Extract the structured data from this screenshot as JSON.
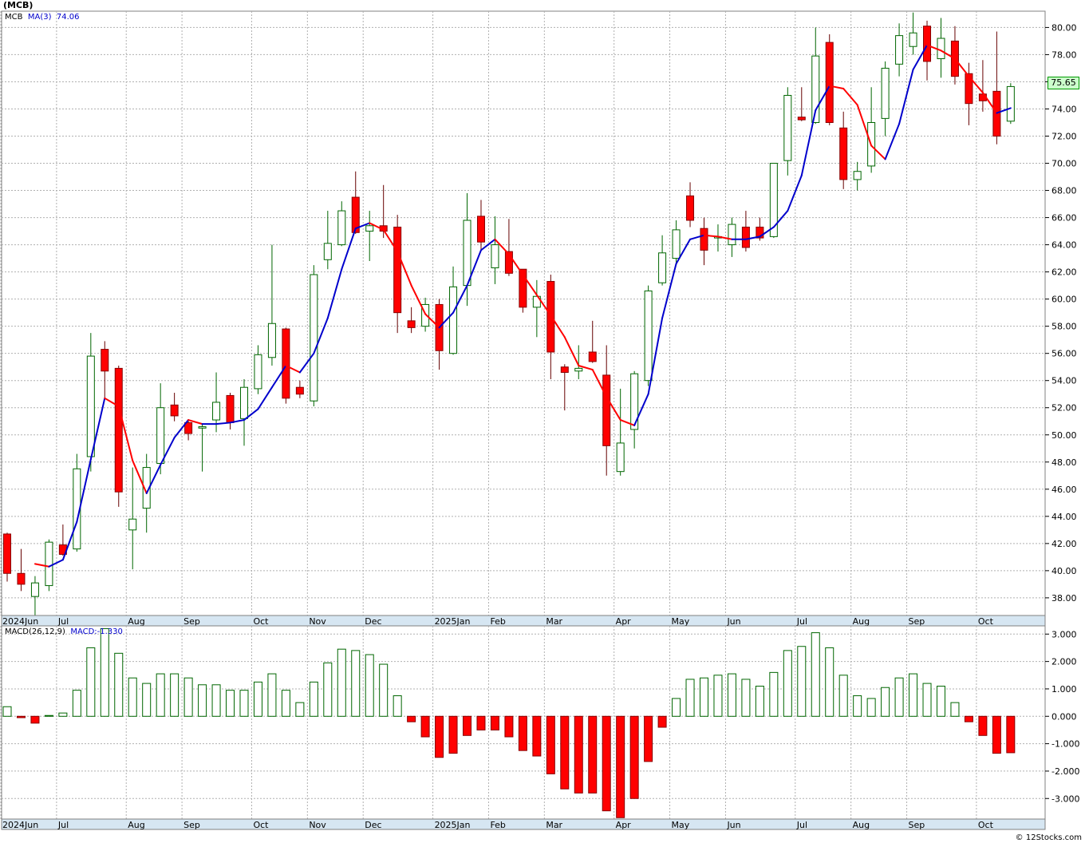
{
  "header": {
    "title": "(MCB)",
    "price_legend_symbol": "MCB",
    "ma_label": "MA(3)",
    "ma_value": "74.06",
    "macd_label": "MACD(26,12,9)",
    "macd_value_label": "MACD:-1.330",
    "last_price": "75.65",
    "credit": "© 12Stocks.com"
  },
  "colors": {
    "up_outline": "#006600",
    "down_fill": "#ff0000",
    "ma_up": "#0000cc",
    "ma_down": "#ff0000",
    "grid": "#b0b0b0",
    "axis_band": "#d6e6f2"
  },
  "chart_data": [
    {
      "type": "candlestick",
      "title": "(MCB)",
      "interval": "weekly",
      "ylim": [
        36.7,
        81.2
      ],
      "y_ticks": [
        "38.00",
        "40.00",
        "42.00",
        "44.00",
        "46.00",
        "48.00",
        "50.00",
        "52.00",
        "54.00",
        "56.00",
        "58.00",
        "60.00",
        "62.00",
        "64.00",
        "66.00",
        "68.00",
        "70.00",
        "72.00",
        "74.00",
        "76.00",
        "78.00",
        "80.00"
      ],
      "x_ticks": [
        {
          "label": "2024Jun",
          "i": 0
        },
        {
          "label": "Jul",
          "i": 4
        },
        {
          "label": "Aug",
          "i": 9
        },
        {
          "label": "Sep",
          "i": 13
        },
        {
          "label": "Oct",
          "i": 18
        },
        {
          "label": "Nov",
          "i": 22
        },
        {
          "label": "Dec",
          "i": 26
        },
        {
          "label": "2025Jan",
          "i": 31
        },
        {
          "label": "Feb",
          "i": 35
        },
        {
          "label": "Mar",
          "i": 39
        },
        {
          "label": "Apr",
          "i": 44
        },
        {
          "label": "May",
          "i": 48
        },
        {
          "label": "Jun",
          "i": 52
        },
        {
          "label": "Jul",
          "i": 57
        },
        {
          "label": "Aug",
          "i": 61
        },
        {
          "label": "Sep",
          "i": 65
        },
        {
          "label": "Oct",
          "i": 70
        }
      ],
      "candles": [
        {
          "o": 42.7,
          "h": 42.8,
          "l": 39.2,
          "c": 39.8
        },
        {
          "o": 39.8,
          "h": 41.6,
          "l": 38.5,
          "c": 39.0
        },
        {
          "o": 38.1,
          "h": 39.6,
          "l": 36.5,
          "c": 39.1
        },
        {
          "o": 38.9,
          "h": 42.3,
          "l": 38.5,
          "c": 42.1
        },
        {
          "o": 41.9,
          "h": 43.4,
          "l": 41.1,
          "c": 41.2
        },
        {
          "o": 41.6,
          "h": 48.6,
          "l": 41.4,
          "c": 47.5
        },
        {
          "o": 48.4,
          "h": 57.5,
          "l": 47.3,
          "c": 55.8
        },
        {
          "o": 56.3,
          "h": 56.9,
          "l": 52.7,
          "c": 54.7
        },
        {
          "o": 54.9,
          "h": 55.1,
          "l": 44.7,
          "c": 45.8
        },
        {
          "o": 43.0,
          "h": 47.6,
          "l": 40.1,
          "c": 43.8
        },
        {
          "o": 44.6,
          "h": 48.6,
          "l": 42.8,
          "c": 47.6
        },
        {
          "o": 47.9,
          "h": 53.8,
          "l": 47.1,
          "c": 52.0
        },
        {
          "o": 52.2,
          "h": 53.1,
          "l": 51.0,
          "c": 51.4
        },
        {
          "o": 50.9,
          "h": 51.1,
          "l": 49.6,
          "c": 50.1
        },
        {
          "o": 50.5,
          "h": 50.8,
          "l": 47.3,
          "c": 50.6
        },
        {
          "o": 51.1,
          "h": 54.6,
          "l": 50.2,
          "c": 52.4
        },
        {
          "o": 52.9,
          "h": 53.1,
          "l": 50.4,
          "c": 50.9
        },
        {
          "o": 51.2,
          "h": 54.1,
          "l": 49.2,
          "c": 53.5
        },
        {
          "o": 53.4,
          "h": 56.6,
          "l": 53.0,
          "c": 55.9
        },
        {
          "o": 55.7,
          "h": 64.0,
          "l": 55.1,
          "c": 58.2
        },
        {
          "o": 57.8,
          "h": 57.9,
          "l": 52.3,
          "c": 52.7
        },
        {
          "o": 53.5,
          "h": 54.0,
          "l": 52.7,
          "c": 53.0
        },
        {
          "o": 52.5,
          "h": 62.5,
          "l": 52.1,
          "c": 61.8
        },
        {
          "o": 62.9,
          "h": 66.5,
          "l": 62.2,
          "c": 64.1
        },
        {
          "o": 64.0,
          "h": 67.2,
          "l": 63.9,
          "c": 66.5
        },
        {
          "o": 67.5,
          "h": 69.4,
          "l": 64.8,
          "c": 64.9
        },
        {
          "o": 65.0,
          "h": 66.5,
          "l": 62.8,
          "c": 65.4
        },
        {
          "o": 65.4,
          "h": 68.4,
          "l": 64.5,
          "c": 65.0
        },
        {
          "o": 65.3,
          "h": 66.2,
          "l": 57.5,
          "c": 59.0
        },
        {
          "o": 58.4,
          "h": 59.4,
          "l": 57.5,
          "c": 57.9
        },
        {
          "o": 58.0,
          "h": 60.1,
          "l": 57.6,
          "c": 59.6
        },
        {
          "o": 59.6,
          "h": 60.0,
          "l": 54.8,
          "c": 56.2
        },
        {
          "o": 56.0,
          "h": 62.4,
          "l": 55.9,
          "c": 60.9
        },
        {
          "o": 61.0,
          "h": 67.8,
          "l": 59.5,
          "c": 65.8
        },
        {
          "o": 66.1,
          "h": 67.3,
          "l": 63.6,
          "c": 64.2
        },
        {
          "o": 62.3,
          "h": 66.1,
          "l": 61.1,
          "c": 64.0
        },
        {
          "o": 63.5,
          "h": 65.9,
          "l": 61.7,
          "c": 61.9
        },
        {
          "o": 62.2,
          "h": 62.2,
          "l": 59.0,
          "c": 59.4
        },
        {
          "o": 59.4,
          "h": 61.4,
          "l": 57.2,
          "c": 60.2
        },
        {
          "o": 61.3,
          "h": 61.8,
          "l": 54.1,
          "c": 56.1
        },
        {
          "o": 55.0,
          "h": 55.2,
          "l": 51.8,
          "c": 54.6
        },
        {
          "o": 54.7,
          "h": 56.6,
          "l": 54.1,
          "c": 54.9
        },
        {
          "o": 56.1,
          "h": 58.4,
          "l": 55.3,
          "c": 55.4
        },
        {
          "o": 54.4,
          "h": 56.6,
          "l": 47.0,
          "c": 49.2
        },
        {
          "o": 47.3,
          "h": 53.4,
          "l": 47.0,
          "c": 49.4
        },
        {
          "o": 50.4,
          "h": 54.7,
          "l": 49.0,
          "c": 54.5
        },
        {
          "o": 54.0,
          "h": 61.0,
          "l": 53.6,
          "c": 60.6
        },
        {
          "o": 61.2,
          "h": 64.7,
          "l": 61.0,
          "c": 63.4
        },
        {
          "o": 63.0,
          "h": 65.8,
          "l": 62.5,
          "c": 65.1
        },
        {
          "o": 67.6,
          "h": 68.6,
          "l": 65.3,
          "c": 65.8
        },
        {
          "o": 65.2,
          "h": 66.0,
          "l": 62.5,
          "c": 63.6
        },
        {
          "o": 64.5,
          "h": 65.5,
          "l": 63.5,
          "c": 64.6
        },
        {
          "o": 64.0,
          "h": 66.0,
          "l": 63.1,
          "c": 65.5
        },
        {
          "o": 65.3,
          "h": 66.5,
          "l": 63.5,
          "c": 63.8
        },
        {
          "o": 65.3,
          "h": 66.0,
          "l": 64.3,
          "c": 64.5
        },
        {
          "o": 64.6,
          "h": 70.0,
          "l": 64.5,
          "c": 70.0
        },
        {
          "o": 70.2,
          "h": 75.6,
          "l": 69.1,
          "c": 75.0
        },
        {
          "o": 73.4,
          "h": 75.6,
          "l": 73.1,
          "c": 73.2
        },
        {
          "o": 73.0,
          "h": 80.0,
          "l": 72.9,
          "c": 77.9
        },
        {
          "o": 78.9,
          "h": 79.5,
          "l": 72.8,
          "c": 73.0
        },
        {
          "o": 72.6,
          "h": 73.8,
          "l": 68.1,
          "c": 68.8
        },
        {
          "o": 68.8,
          "h": 70.1,
          "l": 68.0,
          "c": 69.4
        },
        {
          "o": 69.8,
          "h": 75.6,
          "l": 69.3,
          "c": 73.0
        },
        {
          "o": 73.3,
          "h": 77.5,
          "l": 72.0,
          "c": 77.0
        },
        {
          "o": 77.3,
          "h": 80.3,
          "l": 76.4,
          "c": 79.4
        },
        {
          "o": 78.6,
          "h": 81.1,
          "l": 78.0,
          "c": 79.6
        },
        {
          "o": 80.1,
          "h": 80.5,
          "l": 76.1,
          "c": 77.5
        },
        {
          "o": 77.7,
          "h": 80.7,
          "l": 76.3,
          "c": 79.2
        },
        {
          "o": 79.0,
          "h": 80.1,
          "l": 75.8,
          "c": 76.4
        },
        {
          "o": 76.6,
          "h": 77.4,
          "l": 72.8,
          "c": 74.4
        },
        {
          "o": 75.1,
          "h": 77.6,
          "l": 73.8,
          "c": 74.6
        },
        {
          "o": 75.3,
          "h": 79.7,
          "l": 71.4,
          "c": 72.0
        },
        {
          "o": 73.1,
          "h": 75.9,
          "l": 72.9,
          "c": 75.65
        }
      ],
      "ma3": {
        "name": "MA(3)",
        "values": [
          null,
          null,
          40.5,
          40.3,
          40.8,
          43.6,
          48.2,
          52.7,
          52.1,
          48.1,
          45.7,
          47.8,
          49.8,
          51.1,
          50.8,
          50.8,
          50.9,
          51.1,
          51.9,
          53.5,
          55.1,
          54.6,
          56.0,
          58.6,
          62.2,
          65.2,
          65.6,
          65.1,
          63.5,
          61.0,
          58.9,
          57.9,
          59.0,
          61.0,
          63.6,
          64.4,
          63.3,
          61.8,
          60.3,
          58.8,
          57.2,
          55.1,
          54.8,
          52.8,
          51.1,
          50.7,
          53.0,
          58.6,
          62.6,
          64.4,
          64.7,
          64.6,
          64.4,
          64.4,
          64.6,
          65.3,
          66.5,
          69.1,
          73.9,
          75.7,
          75.5,
          74.3,
          71.3,
          70.3,
          72.9,
          76.9,
          78.7,
          78.3,
          77.7,
          76.4,
          75.2,
          73.7,
          74.06
        ]
      }
    },
    {
      "type": "bar",
      "title": "MACD(26,12,9)",
      "ylim": [
        -3.75,
        3.3
      ],
      "y_ticks": [
        "-3.000",
        "-2.000",
        "-1.000",
        "0.000",
        "1.000",
        "2.000",
        "3.000"
      ],
      "values": [
        0.35,
        -0.05,
        -0.25,
        0.03,
        0.12,
        0.95,
        2.5,
        3.2,
        2.3,
        1.4,
        1.2,
        1.55,
        1.55,
        1.4,
        1.15,
        1.15,
        0.95,
        0.95,
        1.25,
        1.55,
        0.95,
        0.5,
        1.25,
        1.95,
        2.45,
        2.4,
        2.25,
        1.9,
        0.75,
        -0.2,
        -0.75,
        -1.5,
        -1.35,
        -0.7,
        -0.5,
        -0.5,
        -0.75,
        -1.25,
        -1.45,
        -2.1,
        -2.65,
        -2.8,
        -2.8,
        -3.45,
        -3.7,
        -3.0,
        -1.65,
        -0.4,
        0.65,
        1.35,
        1.4,
        1.5,
        1.55,
        1.35,
        1.1,
        1.6,
        2.4,
        2.55,
        3.05,
        2.5,
        1.5,
        0.75,
        0.65,
        1.05,
        1.4,
        1.55,
        1.2,
        1.1,
        0.5,
        -0.2,
        -0.7,
        -1.35,
        -1.33
      ]
    }
  ]
}
